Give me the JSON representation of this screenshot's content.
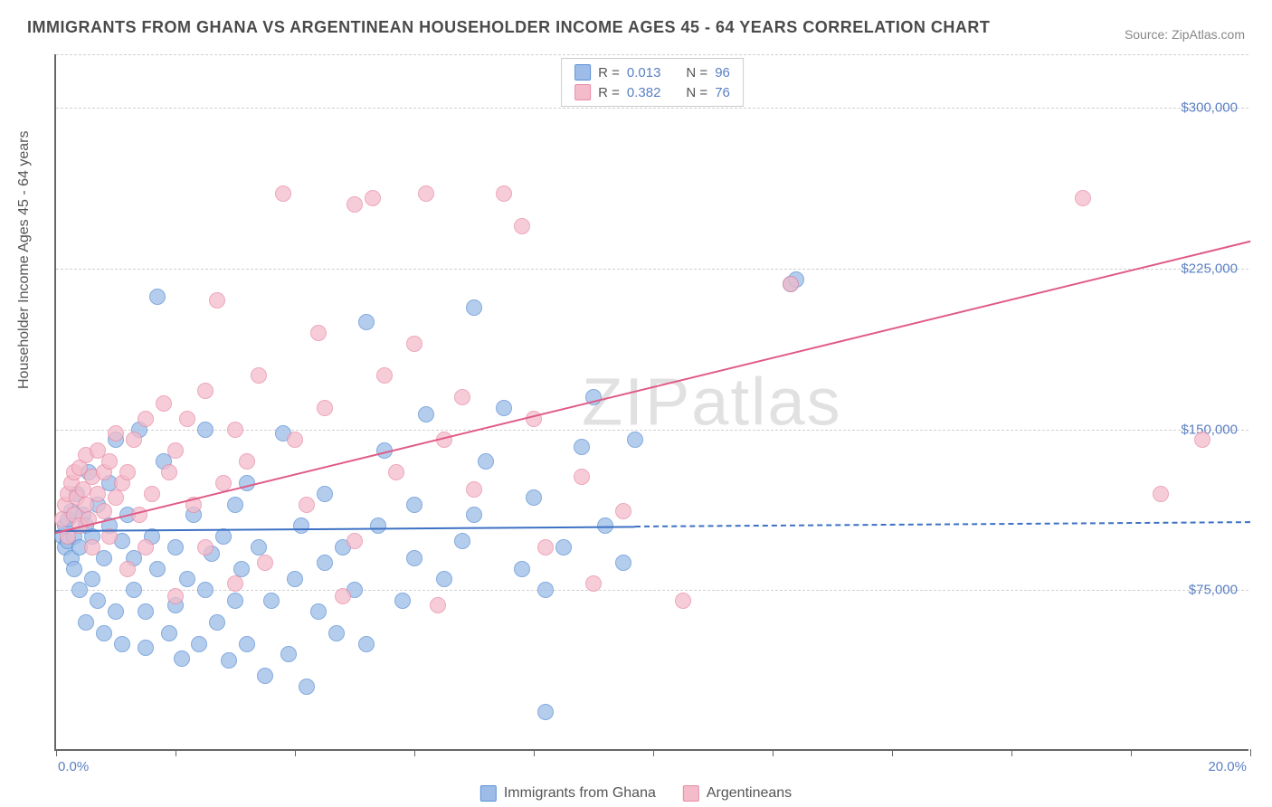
{
  "title": "IMMIGRANTS FROM GHANA VS ARGENTINEAN HOUSEHOLDER INCOME AGES 45 - 64 YEARS CORRELATION CHART",
  "source_label": "Source: ",
  "source_value": "ZipAtlas.com",
  "ylabel": "Householder Income Ages 45 - 64 years",
  "watermark": "ZIPatlas",
  "chart": {
    "type": "scatter",
    "xlim": [
      0,
      20
    ],
    "ylim": [
      0,
      325000
    ],
    "x_axis_unit": "%",
    "y_axis_unit": "$",
    "title_fontsize": 18,
    "label_fontsize": 16,
    "tick_fontsize": 15,
    "tick_color": "#5a7fc4",
    "axis_color": "#666666",
    "grid_color": "#d0d0d0",
    "grid_style": "dashed",
    "background_color": "#ffffff",
    "y_gridlines": [
      75000,
      150000,
      225000,
      300000,
      325000
    ],
    "y_tick_labels": [
      "$75,000",
      "$150,000",
      "$225,000",
      "$300,000"
    ],
    "x_ticks": [
      0,
      2,
      4,
      6,
      8,
      10,
      12,
      14,
      16,
      18,
      20
    ],
    "x_tick_labels_shown": {
      "0": "0.0%",
      "20": "20.0%"
    },
    "marker_radius": 9,
    "marker_border_width": 1.5,
    "marker_fill_opacity": 0.35,
    "series": [
      {
        "id": "ghana",
        "label": "Immigrants from Ghana",
        "fill_color": "#9dbde8",
        "border_color": "#5a8fd4",
        "R": "0.013",
        "N": "96",
        "trend": {
          "y_start": 103000,
          "y_end": 107000,
          "solid_until_x": 9.7,
          "color": "#3d71c4",
          "width": 2
        },
        "points": [
          [
            0.1,
            100000
          ],
          [
            0.15,
            95000
          ],
          [
            0.15,
            105000
          ],
          [
            0.2,
            98000
          ],
          [
            0.2,
            108000
          ],
          [
            0.25,
            90000
          ],
          [
            0.25,
            112000
          ],
          [
            0.3,
            85000
          ],
          [
            0.3,
            100000
          ],
          [
            0.35,
            120000
          ],
          [
            0.4,
            75000
          ],
          [
            0.4,
            95000
          ],
          [
            0.45,
            110000
          ],
          [
            0.5,
            60000
          ],
          [
            0.5,
            105000
          ],
          [
            0.55,
            130000
          ],
          [
            0.6,
            80000
          ],
          [
            0.6,
            100000
          ],
          [
            0.7,
            70000
          ],
          [
            0.7,
            115000
          ],
          [
            0.8,
            90000
          ],
          [
            0.8,
            55000
          ],
          [
            0.9,
            105000
          ],
          [
            0.9,
            125000
          ],
          [
            1.0,
            65000
          ],
          [
            1.0,
            145000
          ],
          [
            1.1,
            98000
          ],
          [
            1.1,
            50000
          ],
          [
            1.2,
            110000
          ],
          [
            1.3,
            75000
          ],
          [
            1.3,
            90000
          ],
          [
            1.4,
            150000
          ],
          [
            1.5,
            65000
          ],
          [
            1.5,
            48000
          ],
          [
            1.6,
            100000
          ],
          [
            1.7,
            85000
          ],
          [
            1.7,
            212000
          ],
          [
            1.8,
            135000
          ],
          [
            1.9,
            55000
          ],
          [
            2.0,
            95000
          ],
          [
            2.0,
            68000
          ],
          [
            2.1,
            43000
          ],
          [
            2.2,
            80000
          ],
          [
            2.3,
            110000
          ],
          [
            2.4,
            50000
          ],
          [
            2.5,
            75000
          ],
          [
            2.5,
            150000
          ],
          [
            2.6,
            92000
          ],
          [
            2.7,
            60000
          ],
          [
            2.8,
            100000
          ],
          [
            2.9,
            42000
          ],
          [
            3.0,
            115000
          ],
          [
            3.0,
            70000
          ],
          [
            3.1,
            85000
          ],
          [
            3.2,
            125000
          ],
          [
            3.2,
            50000
          ],
          [
            3.4,
            95000
          ],
          [
            3.5,
            35000
          ],
          [
            3.6,
            70000
          ],
          [
            3.8,
            148000
          ],
          [
            3.9,
            45000
          ],
          [
            4.0,
            80000
          ],
          [
            4.1,
            105000
          ],
          [
            4.2,
            30000
          ],
          [
            4.4,
            65000
          ],
          [
            4.5,
            120000
          ],
          [
            4.5,
            88000
          ],
          [
            4.7,
            55000
          ],
          [
            4.8,
            95000
          ],
          [
            5.0,
            75000
          ],
          [
            5.2,
            200000
          ],
          [
            5.2,
            50000
          ],
          [
            5.4,
            105000
          ],
          [
            5.5,
            140000
          ],
          [
            5.8,
            70000
          ],
          [
            6.0,
            90000
          ],
          [
            6.0,
            115000
          ],
          [
            6.2,
            157000
          ],
          [
            6.5,
            80000
          ],
          [
            6.8,
            98000
          ],
          [
            7.0,
            110000
          ],
          [
            7.0,
            207000
          ],
          [
            7.2,
            135000
          ],
          [
            7.5,
            160000
          ],
          [
            7.8,
            85000
          ],
          [
            8.0,
            118000
          ],
          [
            8.2,
            18000
          ],
          [
            8.2,
            75000
          ],
          [
            8.5,
            95000
          ],
          [
            8.8,
            142000
          ],
          [
            9.0,
            165000
          ],
          [
            9.2,
            105000
          ],
          [
            9.5,
            88000
          ],
          [
            9.7,
            145000
          ],
          [
            12.3,
            218000
          ],
          [
            12.4,
            220000
          ]
        ]
      },
      {
        "id": "argentina",
        "label": "Argentineans",
        "fill_color": "#f4bccb",
        "border_color": "#e88ba5",
        "R": "0.382",
        "N": "76",
        "trend": {
          "y_start": 102000,
          "y_end": 238000,
          "solid_until_x": 20,
          "color": "#e05a85",
          "width": 2
        },
        "points": [
          [
            0.1,
            108000
          ],
          [
            0.15,
            115000
          ],
          [
            0.2,
            120000
          ],
          [
            0.2,
            100000
          ],
          [
            0.25,
            125000
          ],
          [
            0.3,
            110000
          ],
          [
            0.3,
            130000
          ],
          [
            0.35,
            118000
          ],
          [
            0.4,
            132000
          ],
          [
            0.4,
            105000
          ],
          [
            0.45,
            122000
          ],
          [
            0.5,
            115000
          ],
          [
            0.5,
            138000
          ],
          [
            0.55,
            108000
          ],
          [
            0.6,
            128000
          ],
          [
            0.6,
            95000
          ],
          [
            0.7,
            120000
          ],
          [
            0.7,
            140000
          ],
          [
            0.8,
            112000
          ],
          [
            0.8,
            130000
          ],
          [
            0.9,
            100000
          ],
          [
            0.9,
            135000
          ],
          [
            1.0,
            118000
          ],
          [
            1.0,
            148000
          ],
          [
            1.1,
            125000
          ],
          [
            1.2,
            85000
          ],
          [
            1.2,
            130000
          ],
          [
            1.3,
            145000
          ],
          [
            1.4,
            110000
          ],
          [
            1.5,
            155000
          ],
          [
            1.5,
            95000
          ],
          [
            1.6,
            120000
          ],
          [
            1.8,
            162000
          ],
          [
            1.9,
            130000
          ],
          [
            2.0,
            72000
          ],
          [
            2.0,
            140000
          ],
          [
            2.2,
            155000
          ],
          [
            2.3,
            115000
          ],
          [
            2.5,
            95000
          ],
          [
            2.5,
            168000
          ],
          [
            2.7,
            210000
          ],
          [
            2.8,
            125000
          ],
          [
            3.0,
            78000
          ],
          [
            3.0,
            150000
          ],
          [
            3.2,
            135000
          ],
          [
            3.4,
            175000
          ],
          [
            3.5,
            88000
          ],
          [
            3.8,
            260000
          ],
          [
            4.0,
            145000
          ],
          [
            4.2,
            115000
          ],
          [
            4.4,
            195000
          ],
          [
            4.5,
            160000
          ],
          [
            4.8,
            72000
          ],
          [
            5.0,
            98000
          ],
          [
            5.0,
            255000
          ],
          [
            5.3,
            258000
          ],
          [
            5.5,
            175000
          ],
          [
            5.7,
            130000
          ],
          [
            6.0,
            190000
          ],
          [
            6.2,
            260000
          ],
          [
            6.4,
            68000
          ],
          [
            6.5,
            145000
          ],
          [
            6.8,
            165000
          ],
          [
            7.0,
            122000
          ],
          [
            7.5,
            260000
          ],
          [
            7.8,
            245000
          ],
          [
            8.0,
            155000
          ],
          [
            8.2,
            95000
          ],
          [
            8.8,
            128000
          ],
          [
            9.0,
            78000
          ],
          [
            9.5,
            112000
          ],
          [
            10.5,
            70000
          ],
          [
            12.3,
            218000
          ],
          [
            17.2,
            258000
          ],
          [
            18.5,
            120000
          ],
          [
            19.2,
            145000
          ]
        ]
      }
    ]
  },
  "top_legend": {
    "rows": [
      {
        "swatch_fill": "#9dbde8",
        "swatch_border": "#5a8fd4",
        "r_label": "R = ",
        "r_val": "0.013",
        "n_label": "N = ",
        "n_val": "96"
      },
      {
        "swatch_fill": "#f4bccb",
        "swatch_border": "#e88ba5",
        "r_label": "R = ",
        "r_val": "0.382",
        "n_label": "N = ",
        "n_val": "76"
      }
    ]
  },
  "bottom_legend": {
    "items": [
      {
        "swatch_fill": "#9dbde8",
        "swatch_border": "#5a8fd4",
        "label": "Immigrants from Ghana"
      },
      {
        "swatch_fill": "#f4bccb",
        "swatch_border": "#e88ba5",
        "label": "Argentineans"
      }
    ]
  }
}
